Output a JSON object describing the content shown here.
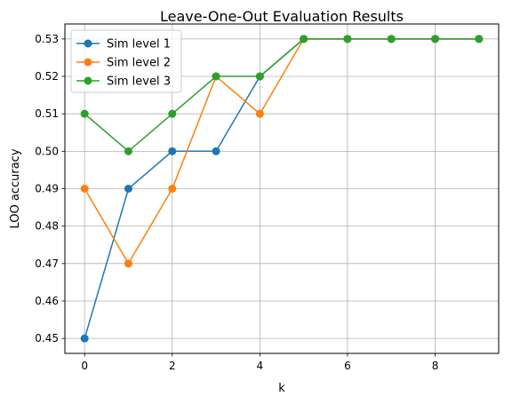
{
  "chart_data": {
    "type": "line",
    "title": "Leave-One-Out Evaluation Results",
    "xlabel": "k",
    "ylabel": "LOO accuracy",
    "x": [
      0,
      1,
      2,
      3,
      4,
      5,
      6,
      7,
      8,
      9
    ],
    "xlim": [
      -0.45,
      9.45
    ],
    "ylim": [
      0.446,
      0.534
    ],
    "xticks": [
      0,
      2,
      4,
      6,
      8
    ],
    "xtick_labels": [
      "0",
      "2",
      "4",
      "6",
      "8"
    ],
    "yticks": [
      0.45,
      0.46,
      0.47,
      0.48,
      0.49,
      0.5,
      0.51,
      0.52,
      0.53
    ],
    "ytick_labels": [
      "0.45",
      "0.46",
      "0.47",
      "0.48",
      "0.49",
      "0.50",
      "0.51",
      "0.52",
      "0.53"
    ],
    "grid": true,
    "legend_position": "top-left",
    "series": [
      {
        "name": "Sim level 1",
        "color": "#1f77b4",
        "values": [
          0.45,
          0.49,
          0.5,
          0.5,
          0.52,
          0.53,
          0.53,
          0.53,
          0.53,
          0.53
        ]
      },
      {
        "name": "Sim level 2",
        "color": "#ff7f0e",
        "values": [
          0.49,
          0.47,
          0.49,
          0.52,
          0.51,
          0.53,
          0.53,
          0.53,
          0.53,
          0.53
        ]
      },
      {
        "name": "Sim level 3",
        "color": "#2ca02c",
        "values": [
          0.51,
          0.5,
          0.51,
          0.52,
          0.52,
          0.53,
          0.53,
          0.53,
          0.53,
          0.53
        ]
      }
    ]
  }
}
